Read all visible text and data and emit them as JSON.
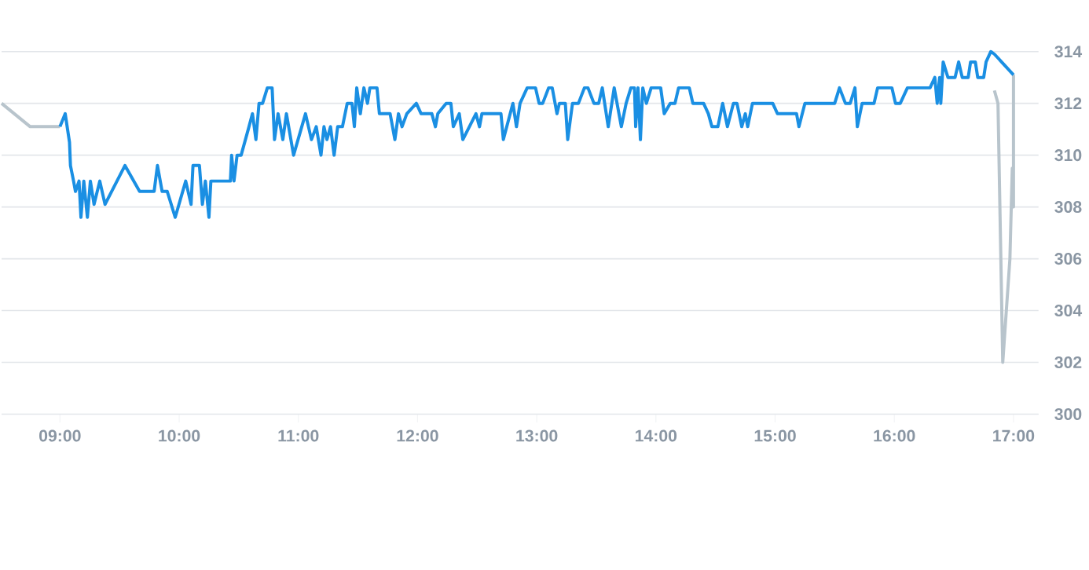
{
  "chart_data": {
    "type": "line",
    "xlim": [
      8.51,
      17.21
    ],
    "ylim": [
      300,
      314
    ],
    "xticks": [
      {
        "value": 9,
        "label": "09:00"
      },
      {
        "value": 10,
        "label": "10:00"
      },
      {
        "value": 11,
        "label": "11:00"
      },
      {
        "value": 12,
        "label": "12:00"
      },
      {
        "value": 13,
        "label": "13:00"
      },
      {
        "value": 14,
        "label": "14:00"
      },
      {
        "value": 15,
        "label": "15:00"
      },
      {
        "value": 16,
        "label": "16:00"
      },
      {
        "value": 17,
        "label": "17:00"
      }
    ],
    "yticks": [
      300,
      302,
      304,
      306,
      308,
      310,
      312,
      314
    ],
    "grid": "y",
    "marker": "none",
    "line_style": "solid",
    "series": [
      {
        "color": "#b8c4cc",
        "x": [
          8.51,
          8.75,
          9.0
        ],
        "values": [
          312,
          311.1,
          311.1
        ]
      },
      {
        "color": "#b8c4cc",
        "x": [
          16.84,
          16.87,
          16.91,
          16.97,
          16.99,
          17.0,
          17.0
        ],
        "values": [
          312.5,
          312,
          302,
          306,
          309.5,
          308,
          313.1
        ]
      },
      {
        "color": "#1a8fe3",
        "x": [
          9.0,
          9.044,
          9.08,
          9.088,
          9.114,
          9.13,
          9.16,
          9.176,
          9.2,
          9.23,
          9.255,
          9.286,
          9.334,
          9.378,
          9.545,
          9.668,
          9.79,
          9.818,
          9.857,
          9.9,
          9.967,
          10.055,
          10.1,
          10.116,
          10.17,
          10.195,
          10.22,
          10.25,
          10.266,
          10.43,
          10.44,
          10.46,
          10.486,
          10.52,
          10.58,
          10.615,
          10.644,
          10.67,
          10.7,
          10.74,
          10.78,
          10.8,
          10.83,
          10.87,
          10.9,
          10.96,
          11.06,
          11.11,
          11.15,
          11.19,
          11.215,
          11.24,
          11.27,
          11.3,
          11.33,
          11.37,
          11.41,
          11.45,
          11.47,
          11.49,
          11.52,
          11.55,
          11.58,
          11.6,
          11.66,
          11.68,
          11.77,
          11.81,
          11.84,
          11.87,
          11.91,
          11.99,
          12.03,
          12.12,
          12.15,
          12.17,
          12.24,
          12.28,
          12.3,
          12.35,
          12.38,
          12.49,
          12.52,
          12.54,
          12.7,
          12.72,
          12.8,
          12.83,
          12.86,
          12.92,
          12.99,
          13.02,
          13.05,
          13.1,
          13.13,
          13.17,
          13.19,
          13.24,
          13.26,
          13.3,
          13.35,
          13.4,
          13.43,
          13.48,
          13.52,
          13.55,
          13.6,
          13.65,
          13.71,
          13.75,
          13.79,
          13.82,
          13.83,
          13.85,
          13.87,
          13.89,
          13.92,
          13.96,
          14.04,
          14.07,
          14.12,
          14.16,
          14.19,
          14.28,
          14.31,
          14.4,
          14.44,
          14.47,
          14.52,
          14.56,
          14.6,
          14.65,
          14.68,
          14.72,
          14.75,
          14.77,
          14.81,
          14.98,
          15.02,
          15.18,
          15.2,
          15.25,
          15.5,
          15.54,
          15.59,
          15.63,
          15.67,
          15.69,
          15.73,
          15.83,
          15.86,
          15.98,
          16.01,
          16.05,
          16.11,
          16.3,
          16.34,
          16.36,
          16.38,
          16.39,
          16.41,
          16.45,
          16.51,
          16.54,
          16.57,
          16.62,
          16.64,
          16.68,
          16.7,
          16.75,
          16.77,
          16.81,
          16.84,
          17.0
        ],
        "values": [
          311.1,
          311.6,
          310.5,
          309.6,
          309,
          308.6,
          309,
          307.6,
          309,
          307.6,
          309,
          308.1,
          309,
          308.1,
          309.6,
          308.6,
          308.6,
          309.6,
          308.6,
          308.6,
          307.6,
          309,
          308.1,
          309.6,
          309.6,
          308.1,
          309,
          307.6,
          309,
          309,
          310,
          309,
          310,
          310,
          311,
          311.6,
          310.6,
          312,
          312,
          312.6,
          312.6,
          310.6,
          311.6,
          310.6,
          311.6,
          310,
          311.6,
          310.6,
          311.1,
          310,
          311.1,
          310.6,
          311.1,
          310,
          311.1,
          311.1,
          312,
          312,
          311.1,
          312.6,
          311.6,
          312.6,
          312,
          312.6,
          312.6,
          311.6,
          311.6,
          310.6,
          311.6,
          311.1,
          311.6,
          312,
          311.6,
          311.6,
          311.1,
          311.6,
          312,
          312,
          311.1,
          311.6,
          310.6,
          311.6,
          311.1,
          311.6,
          311.6,
          310.6,
          312,
          311.1,
          312,
          312.6,
          312.6,
          312,
          312,
          312.6,
          312.6,
          311.6,
          312,
          312,
          310.6,
          312,
          312,
          312.6,
          312.6,
          312,
          312,
          312.6,
          311.1,
          312.6,
          311.1,
          312,
          312.6,
          312.6,
          311.1,
          312.6,
          310.6,
          312.6,
          312,
          312.6,
          312.6,
          311.6,
          312,
          312,
          312.6,
          312.6,
          312,
          312,
          311.6,
          311.1,
          311.1,
          312,
          311.1,
          312,
          312,
          311.1,
          311.6,
          311.1,
          312,
          312,
          311.6,
          311.6,
          311.1,
          312,
          312,
          312.6,
          312,
          312,
          312.6,
          311.1,
          312,
          312,
          312.6,
          312.6,
          312,
          312,
          312.6,
          312.6,
          313,
          312,
          313,
          312,
          313.6,
          313,
          313,
          313.6,
          313,
          313,
          313.6,
          313.6,
          313,
          313,
          313.6,
          314,
          313.9,
          313.1
        ]
      }
    ]
  }
}
